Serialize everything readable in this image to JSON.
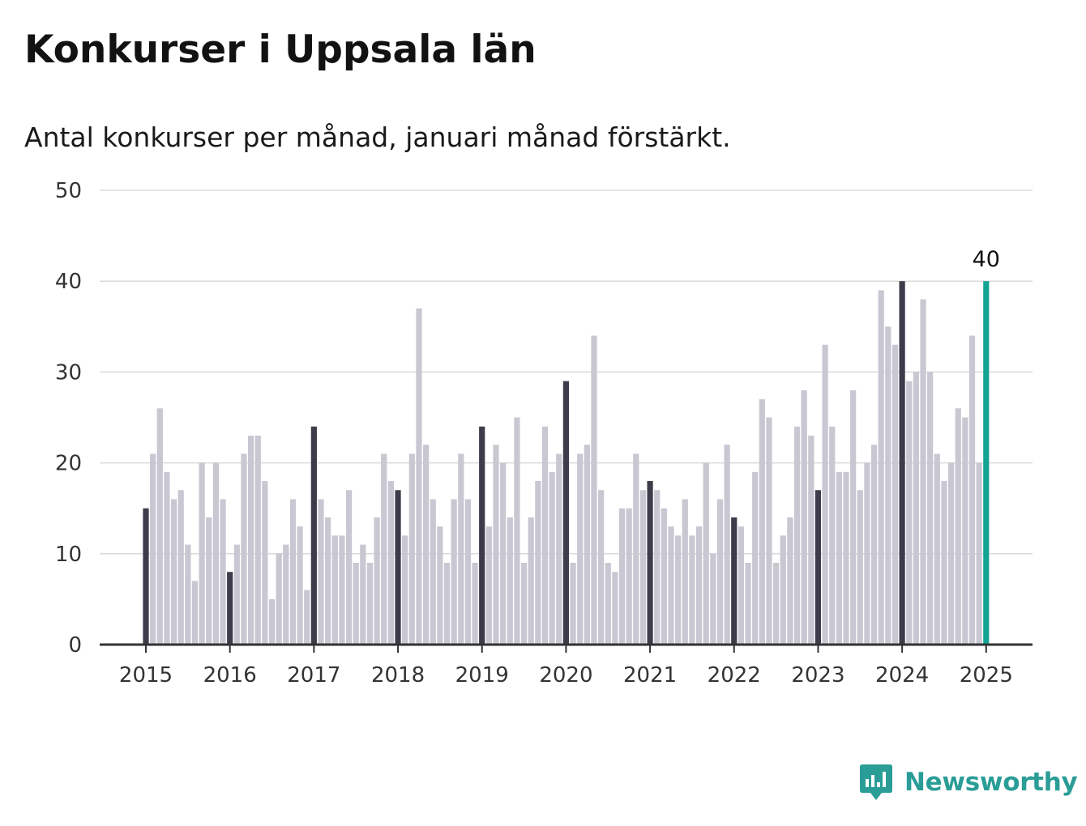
{
  "chart_data": {
    "type": "bar",
    "title": "Konkurser i Uppsala län",
    "subtitle": "Antal konkurser per månad, januari månad förstärkt.",
    "xlabel": "",
    "ylabel": "",
    "ylim": [
      0,
      50
    ],
    "yticks": [
      0,
      10,
      20,
      30,
      40,
      50
    ],
    "xticks": [
      "2015",
      "2016",
      "2017",
      "2018",
      "2019",
      "2020",
      "2021",
      "2022",
      "2023",
      "2024",
      "2025"
    ],
    "start": "2015-01",
    "grid": true,
    "values": [
      15,
      21,
      26,
      19,
      16,
      17,
      11,
      7,
      20,
      14,
      20,
      16,
      8,
      11,
      21,
      23,
      23,
      18,
      5,
      10,
      11,
      16,
      13,
      6,
      24,
      16,
      14,
      12,
      12,
      17,
      9,
      11,
      9,
      14,
      21,
      18,
      17,
      12,
      21,
      37,
      22,
      16,
      13,
      9,
      16,
      21,
      16,
      9,
      24,
      13,
      22,
      20,
      14,
      25,
      9,
      14,
      18,
      24,
      19,
      21,
      29,
      9,
      21,
      22,
      34,
      17,
      9,
      8,
      15,
      15,
      21,
      17,
      18,
      17,
      15,
      13,
      12,
      16,
      12,
      13,
      20,
      10,
      16,
      22,
      14,
      13,
      9,
      19,
      27,
      25,
      9,
      12,
      14,
      24,
      28,
      23,
      17,
      33,
      24,
      19,
      19,
      28,
      17,
      20,
      22,
      39,
      35,
      33,
      40,
      29,
      30,
      38,
      30,
      21,
      18,
      20,
      26,
      25,
      34,
      20,
      40
    ],
    "highlight": "januari",
    "annotation": {
      "label": "40",
      "value": 40
    },
    "colors": {
      "bar": "#c8c7d2",
      "january": "#3d3c4a",
      "latest": "#13a394",
      "grid": "#dadada",
      "axis": "#333333"
    }
  },
  "branding": {
    "logo_text": "Newsworthy",
    "logo_icon": "bar-chart-speech-bubble-icon",
    "color": "#2a9d97"
  }
}
